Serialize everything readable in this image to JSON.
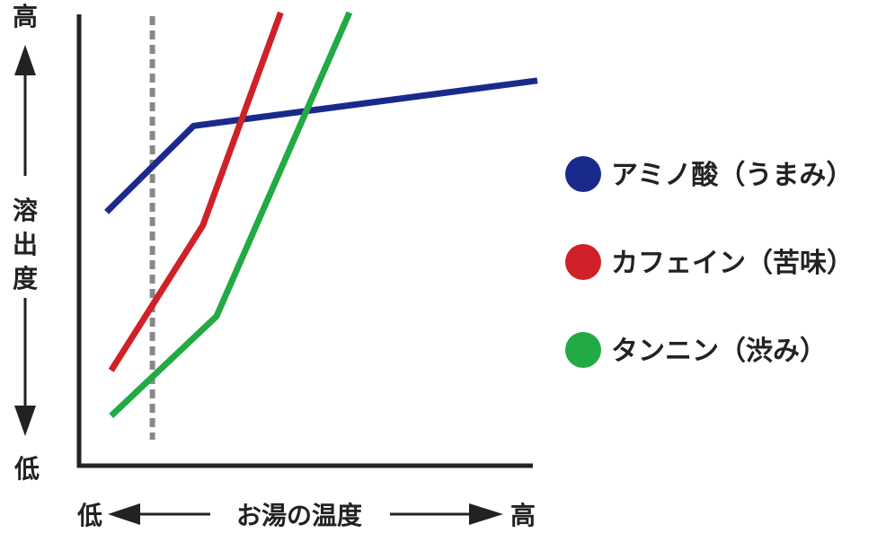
{
  "chart_data": {
    "type": "line",
    "title": "",
    "xlabel": "お湯の温度",
    "ylabel": "溶出度",
    "x_low_label": "低",
    "x_high_label": "高",
    "y_low_label": "低",
    "y_high_label": "高",
    "xlim": [
      0,
      10
    ],
    "ylim": [
      0,
      10
    ],
    "grid": false,
    "legend_position": "right",
    "reference_line_x": 1.6,
    "series": [
      {
        "name": "アミノ酸（うまみ）",
        "color": "#1a2a8c",
        "points": [
          [
            0.6,
            5.6
          ],
          [
            2.5,
            7.5
          ],
          [
            10.0,
            8.5
          ]
        ]
      },
      {
        "name": "カフェイン（苦味）",
        "color": "#d02028",
        "points": [
          [
            0.7,
            2.1
          ],
          [
            2.7,
            5.3
          ],
          [
            4.4,
            10.0
          ]
        ]
      },
      {
        "name": "タンニン（渋み）",
        "color": "#22aa44",
        "points": [
          [
            0.7,
            1.1
          ],
          [
            3.0,
            3.3
          ],
          [
            5.9,
            10.0
          ]
        ]
      }
    ]
  }
}
